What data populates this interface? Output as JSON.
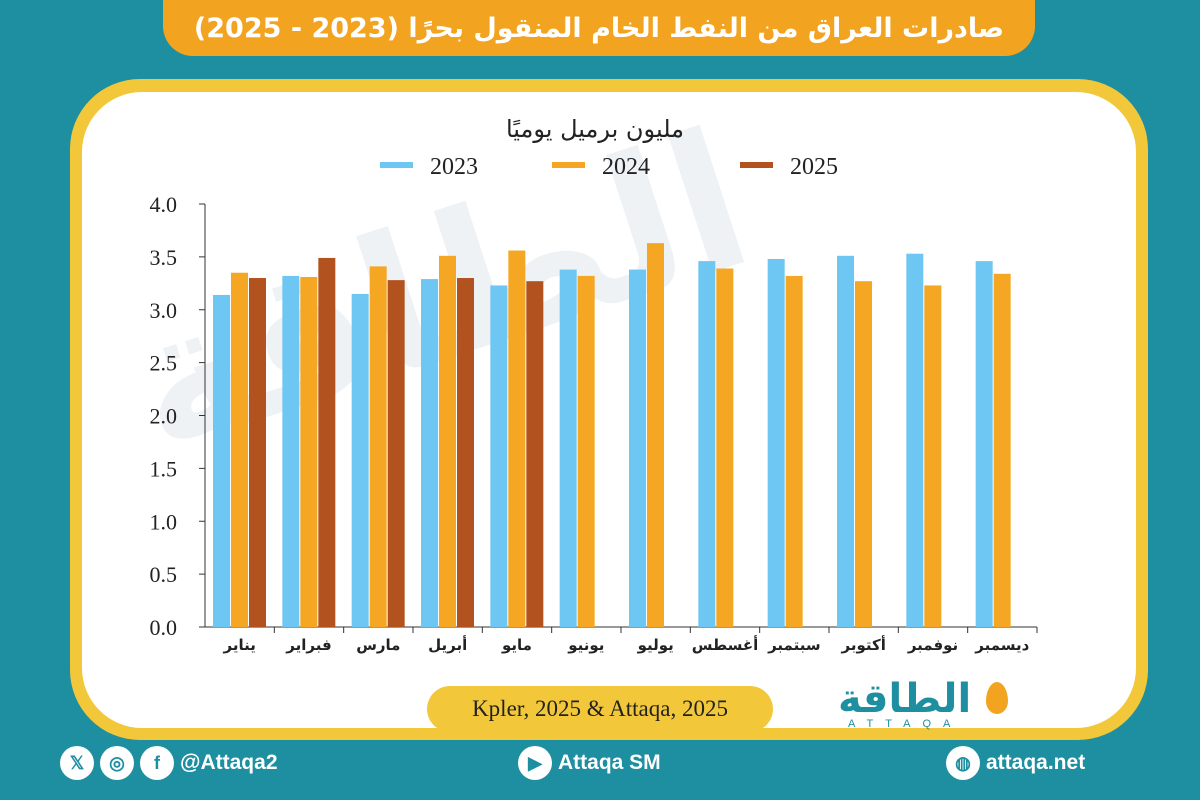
{
  "title": "صادرات العراق من النفط الخام المنقول بحرًا (2023 - 2025)",
  "source": "Kpler, 2025 & Attaqa, 2025",
  "logo": {
    "text": "الطاقة",
    "sub": "ATTAQA"
  },
  "footer": {
    "social_handle": "@Attaqa2",
    "youtube": "Attaqa SM",
    "website": "attaqa.net"
  },
  "colors": {
    "background": "#1d8fa0",
    "banner": "#f2a320",
    "frame": "#f2c83a",
    "series_2023": "#6ec6f2",
    "series_2024": "#f5a623",
    "series_2025": "#b2521f"
  },
  "chart_data": {
    "type": "bar",
    "unit_label": "مليون برميل يوميًا",
    "categories": [
      "يناير",
      "فبراير",
      "مارس",
      "أبريل",
      "مايو",
      "يونيو",
      "يوليو",
      "أغسطس",
      "سبتمبر",
      "أكتوبر",
      "نوفمبر",
      "ديسمبر"
    ],
    "series": [
      {
        "name": "2023",
        "color": "#6ec6f2",
        "values": [
          3.14,
          3.32,
          3.15,
          3.29,
          3.23,
          3.38,
          3.38,
          3.46,
          3.48,
          3.51,
          3.53,
          3.46
        ]
      },
      {
        "name": "2024",
        "color": "#f5a623",
        "values": [
          3.35,
          3.31,
          3.41,
          3.51,
          3.56,
          3.32,
          3.63,
          3.39,
          3.32,
          3.27,
          3.23,
          3.34
        ]
      },
      {
        "name": "2025",
        "color": "#b2521f",
        "values": [
          3.3,
          3.49,
          3.28,
          3.3,
          3.27,
          null,
          null,
          null,
          null,
          null,
          null,
          null
        ]
      }
    ],
    "ylim": [
      0,
      4
    ],
    "yticks": [
      "0.0",
      "0.5",
      "1.0",
      "1.5",
      "2.0",
      "2.5",
      "3.0",
      "3.5",
      "4.0"
    ],
    "legend_position": "top-center",
    "grid": false
  }
}
